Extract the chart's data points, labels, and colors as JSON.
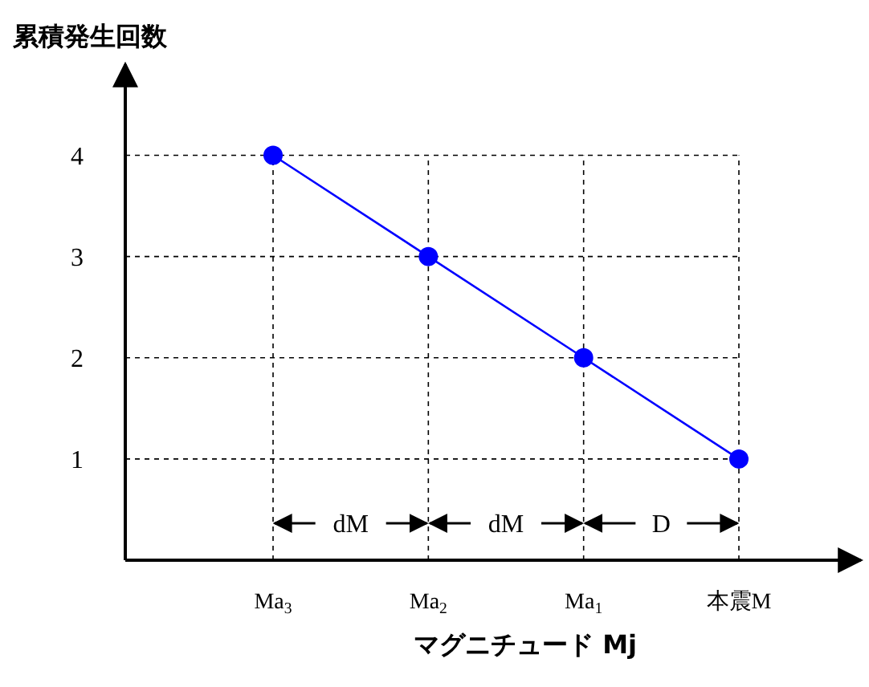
{
  "chart_data": {
    "type": "line",
    "xlabel": "マグニチュード Mj",
    "ylabel": "累積発生回数",
    "categories": [
      "Ma$_{3}$",
      "Ma$_{2}$",
      "Ma$_{1}$",
      "本震M"
    ],
    "series": [
      {
        "color": "#0000ff",
        "values": [
          4,
          3,
          2,
          1
        ]
      }
    ],
    "ylim": [
      0,
      4.9
    ],
    "yticks": [
      1,
      2,
      3,
      4
    ],
    "grid": true,
    "marker": "circle",
    "line_style": "solid",
    "annotations": [
      "dM",
      "dM",
      "D"
    ]
  }
}
